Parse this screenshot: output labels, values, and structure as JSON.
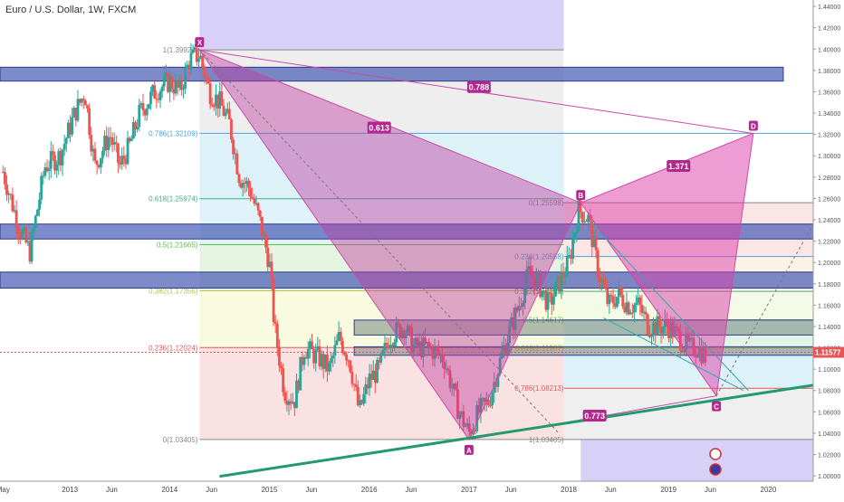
{
  "header": {
    "symbol_title": "Euro / U.S. Dollar, 1W, FXCM"
  },
  "price_axis": {
    "ticks": [
      "1.00000",
      "1.02000",
      "1.04000",
      "1.06000",
      "1.08000",
      "1.10000",
      "1.12000",
      "1.14000",
      "1.16000",
      "1.18000",
      "1.20000",
      "1.22000",
      "1.24000",
      "1.26000",
      "1.28000",
      "1.30000",
      "1.32000",
      "1.34000",
      "1.36000",
      "1.38000",
      "1.40000",
      "1.42000",
      "1.44000"
    ],
    "current_price": "1.11577",
    "current_price_value": 1.11577
  },
  "time_axis": {
    "labels": [
      "May",
      "2013",
      "Jun",
      "2014",
      "Jun",
      "2015",
      "Jun",
      "2016",
      "Jun",
      "2017",
      "Jun",
      "2018",
      "Jun",
      "2019",
      "Jun",
      "2020"
    ],
    "ticks": [
      2012.33,
      2013.0,
      2013.42,
      2014.0,
      2014.42,
      2015.0,
      2015.42,
      2016.0,
      2016.42,
      2017.0,
      2017.42,
      2018.0,
      2018.42,
      2019.0,
      2019.42,
      2020.0
    ]
  },
  "chart_data": {
    "type": "candlestick",
    "x_range": [
      2012.3,
      2020.45
    ],
    "y_range": [
      0.995,
      1.446
    ],
    "pattern": {
      "points": [
        {
          "label": "X",
          "x": 2014.3,
          "y": 1.39924
        },
        {
          "label": "A",
          "x": 2017.0,
          "y": 1.03405
        },
        {
          "label": "B",
          "x": 2018.12,
          "y": 1.256
        },
        {
          "label": "C",
          "x": 2019.48,
          "y": 1.075
        },
        {
          "label": "D",
          "x": 2019.85,
          "y": 1.321
        }
      ],
      "ratios": [
        {
          "label": "0.613",
          "x": 2016.1,
          "y": 1.326
        },
        {
          "label": "0.788",
          "x": 2017.1,
          "y": 1.364
        },
        {
          "label": "1.371",
          "x": 2019.1,
          "y": 1.29
        },
        {
          "label": "0.773",
          "x": 2018.26,
          "y": 1.056
        }
      ]
    },
    "fib_xa": [
      {
        "label": "1(1.39924)",
        "level": 1.39924
      },
      {
        "label": "0.786(1.32109)",
        "level": 1.32109
      },
      {
        "label": "0.618(1.25974)",
        "level": 1.25974
      },
      {
        "label": "0.5(1.21665)",
        "level": 1.21665
      },
      {
        "label": "0.382(1.17356)",
        "level": 1.17356
      },
      {
        "label": "0.236(1.12024)",
        "level": 1.12024
      },
      {
        "label": "0(1.03405)",
        "level": 1.03405
      }
    ],
    "fib_ab": [
      {
        "label": "0(1.25598)",
        "level": 1.25598
      },
      {
        "label": "0.236(1.20558)",
        "level": 1.20558
      },
      {
        "label": "0.382(1.17288)",
        "level": 1.17288
      },
      {
        "label": "0.5(1.14617)",
        "level": 1.14617
      },
      {
        "label": "0.618(1.11987)",
        "level": 1.11987
      },
      {
        "label": "0.786(1.08213)",
        "level": 1.08213
      },
      {
        "label": "1(1.03405)",
        "level": 1.03405
      }
    ],
    "zones": [
      {
        "x0": 2012.3,
        "x1": 2020.15,
        "y0": 1.37,
        "y1": 1.383
      },
      {
        "x0": 2012.3,
        "x1": 2020.45,
        "y0": 1.222,
        "y1": 1.236
      },
      {
        "x0": 2012.3,
        "x1": 2020.45,
        "y0": 1.176,
        "y1": 1.191
      },
      {
        "x0": 2015.85,
        "x1": 2020.45,
        "y0": 1.132,
        "y1": 1.146
      },
      {
        "x0": 2015.85,
        "x1": 2020.45,
        "y0": 1.113,
        "y1": 1.121
      }
    ],
    "trendline": {
      "x0": 2014.5,
      "y0": 0.9995,
      "x1": 2020.45,
      "y1": 1.085
    },
    "price_path": [
      [
        2012.33,
        1.285
      ],
      [
        2012.5,
        1.23
      ],
      [
        2012.6,
        1.21
      ],
      [
        2012.75,
        1.29
      ],
      [
        2012.9,
        1.3
      ],
      [
        2013.05,
        1.34
      ],
      [
        2013.15,
        1.36
      ],
      [
        2013.25,
        1.29
      ],
      [
        2013.4,
        1.32
      ],
      [
        2013.5,
        1.29
      ],
      [
        2013.6,
        1.31
      ],
      [
        2013.7,
        1.34
      ],
      [
        2013.85,
        1.36
      ],
      [
        2014.0,
        1.37
      ],
      [
        2014.1,
        1.36
      ],
      [
        2014.2,
        1.39
      ],
      [
        2014.3,
        1.395
      ],
      [
        2014.4,
        1.36
      ],
      [
        2014.5,
        1.35
      ],
      [
        2014.6,
        1.33
      ],
      [
        2014.7,
        1.28
      ],
      [
        2014.8,
        1.27
      ],
      [
        2014.9,
        1.24
      ],
      [
        2015.0,
        1.2
      ],
      [
        2015.05,
        1.14
      ],
      [
        2015.15,
        1.08
      ],
      [
        2015.25,
        1.07
      ],
      [
        2015.35,
        1.12
      ],
      [
        2015.5,
        1.11
      ],
      [
        2015.6,
        1.1
      ],
      [
        2015.7,
        1.13
      ],
      [
        2015.8,
        1.11
      ],
      [
        2015.9,
        1.06
      ],
      [
        2016.0,
        1.09
      ],
      [
        2016.1,
        1.1
      ],
      [
        2016.2,
        1.13
      ],
      [
        2016.35,
        1.14
      ],
      [
        2016.45,
        1.12
      ],
      [
        2016.6,
        1.12
      ],
      [
        2016.75,
        1.11
      ],
      [
        2016.9,
        1.06
      ],
      [
        2017.0,
        1.04
      ],
      [
        2017.1,
        1.06
      ],
      [
        2017.2,
        1.07
      ],
      [
        2017.35,
        1.12
      ],
      [
        2017.5,
        1.16
      ],
      [
        2017.6,
        1.19
      ],
      [
        2017.7,
        1.18
      ],
      [
        2017.8,
        1.16
      ],
      [
        2017.9,
        1.18
      ],
      [
        2018.0,
        1.2
      ],
      [
        2018.1,
        1.25
      ],
      [
        2018.2,
        1.24
      ],
      [
        2018.3,
        1.19
      ],
      [
        2018.4,
        1.16
      ],
      [
        2018.5,
        1.17
      ],
      [
        2018.6,
        1.16
      ],
      [
        2018.7,
        1.16
      ],
      [
        2018.8,
        1.14
      ],
      [
        2018.9,
        1.14
      ],
      [
        2019.0,
        1.14
      ],
      [
        2019.1,
        1.13
      ],
      [
        2019.2,
        1.12
      ],
      [
        2019.3,
        1.12
      ],
      [
        2019.38,
        1.11
      ]
    ]
  },
  "colors": {
    "up": "#26a69a",
    "down": "#ef5350",
    "zone": "#5b71c2",
    "pattern": "#cc4ba6",
    "trend": "#229a6e",
    "price_line": "#e45757"
  }
}
